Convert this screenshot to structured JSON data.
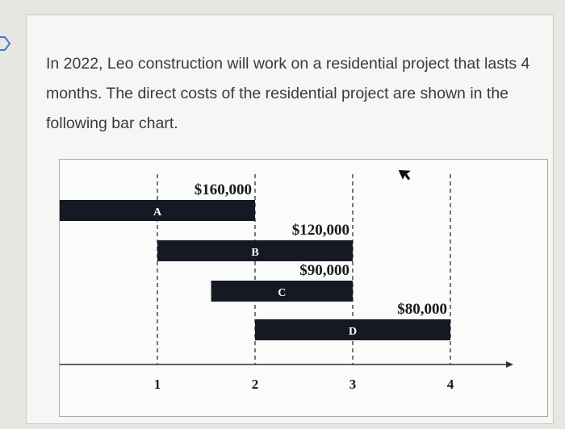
{
  "question": {
    "text": "In 2022, Leo construction will work on a residential project that lasts 4 months. The direct costs of the residential project are shown in the following bar chart."
  },
  "chart_data": {
    "type": "bar",
    "orientation": "horizontal-gantt",
    "title": "",
    "xlabel": "",
    "ylabel": "",
    "xlim": [
      0,
      4
    ],
    "x_ticks": [
      1,
      2,
      3,
      4
    ],
    "tasks": [
      {
        "name": "A",
        "start": 0,
        "end": 2,
        "cost": "$160,000"
      },
      {
        "name": "B",
        "start": 1,
        "end": 3,
        "cost": "$120,000"
      },
      {
        "name": "C",
        "start": 1.55,
        "end": 3,
        "cost": "$90,000"
      },
      {
        "name": "D",
        "start": 2,
        "end": 4,
        "cost": "$80,000"
      }
    ],
    "gridlines": "dashed-vertical",
    "bar_color": "#151923"
  }
}
